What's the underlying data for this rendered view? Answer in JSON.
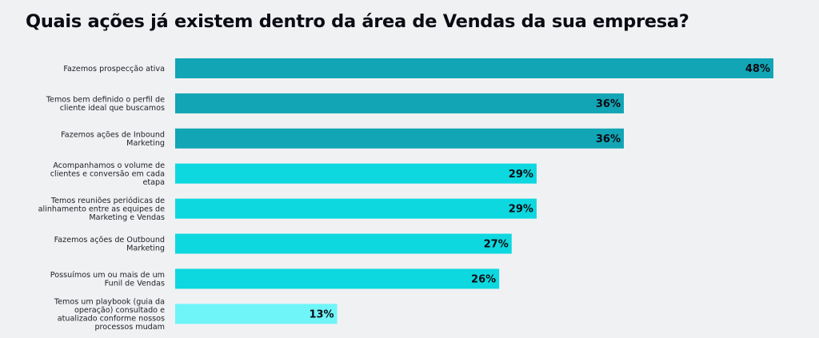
{
  "chart_data": {
    "type": "bar",
    "orientation": "horizontal",
    "title": "Quais ações já existem dentro da área de Vendas da sua empresa?",
    "xlabel": "",
    "ylabel": "",
    "xlim": [
      0,
      48
    ],
    "grid": false,
    "legend": "none",
    "value_suffix": "%",
    "categories": [
      [
        "Fazemos prospecção ativa"
      ],
      [
        "Temos bem definido o perfil de",
        "cliente ideal que buscamos"
      ],
      [
        "Fazemos ações de Inbound",
        "Marketing"
      ],
      [
        "Acompanhamos o volume de",
        "clientes e conversão em cada",
        "etapa"
      ],
      [
        "Temos reuniões periódicas de",
        "alinhamento entre as equipes de",
        "Marketing e Vendas"
      ],
      [
        "Fazemos ações de Outbound",
        "Marketing"
      ],
      [
        "Possuímos um ou mais de um",
        "Funil de Vendas"
      ],
      [
        "Temos um playbook (guia da",
        "operação) consultado e",
        "atualizado conforme nossos",
        "processos mudam"
      ]
    ],
    "values": [
      48,
      36,
      36,
      29,
      29,
      27,
      26,
      13
    ],
    "value_labels": [
      "48%",
      "36%",
      "36%",
      "29%",
      "29%",
      "27%",
      "26%",
      "13%"
    ],
    "bar_colors": [
      "#12A5B5",
      "#12A5B5",
      "#12A5B5",
      "#0DD8DF",
      "#0DD8DF",
      "#0DD8DF",
      "#0DD8DF",
      "#6FF5F8"
    ]
  }
}
